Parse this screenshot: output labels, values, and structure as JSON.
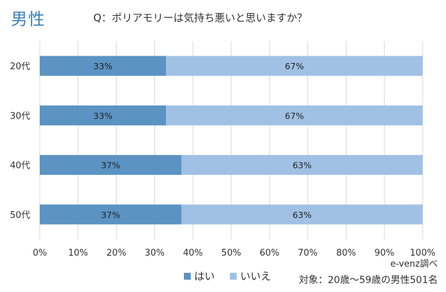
{
  "header": {
    "title": "男性",
    "question": "Q：ポリアモリーは気持ち悪いと思いますか？"
  },
  "footer": {
    "source": "e-venz調べ",
    "target": "対象：20歳～59歳の男性501名"
  },
  "colors": {
    "yes": "#5b93c3",
    "no": "#a0c1e4",
    "title": "#3d7fb9",
    "grid": "#d9d9d9"
  },
  "chart_data": {
    "type": "bar",
    "orientation": "horizontal",
    "stacked": "percent",
    "categories": [
      "20代",
      "30代",
      "40代",
      "50代"
    ],
    "series": [
      {
        "name": "はい",
        "values": [
          33,
          33,
          37,
          37
        ],
        "labels": [
          "33%",
          "33%",
          "37%",
          "37%"
        ]
      },
      {
        "name": "いいえ",
        "values": [
          67,
          67,
          63,
          63
        ],
        "labels": [
          "67%",
          "67%",
          "63%",
          "63%"
        ]
      }
    ],
    "xlim": [
      0,
      100
    ],
    "xticks": [
      "0%",
      "10%",
      "20%",
      "30%",
      "40%",
      "50%",
      "60%",
      "70%",
      "80%",
      "90%",
      "100%"
    ],
    "grid": true,
    "legend_position": "bottom"
  }
}
